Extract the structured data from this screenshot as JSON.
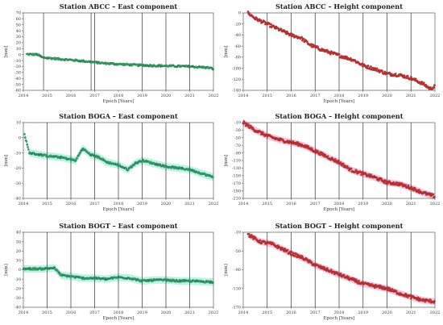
{
  "figure": {
    "xlabel": "Epoch [Years]",
    "ylabel": "[mm]",
    "x_ticks": [
      "2014",
      "2015",
      "2016",
      "2017",
      "2018",
      "2019",
      "2020",
      "2021",
      "2022"
    ]
  },
  "colors": {
    "east_points": "#3aaa6f",
    "east_points_dark": "#2e8a58",
    "height_points": "#c63535",
    "band_green": "#aef0e3",
    "band_pink": "#f6b8d8",
    "break_lines": "#333333"
  },
  "chart_data": [
    {
      "type": "scatter",
      "title": "Station ABCC – East component",
      "component": "east",
      "xlim": [
        2014,
        2022
      ],
      "ylim": [
        -60,
        70
      ],
      "y_ticks": [
        70,
        60,
        50,
        40,
        30,
        20,
        10,
        0,
        -10,
        -20,
        -30,
        -40,
        -50,
        -60
      ],
      "breaks": [
        2014.85,
        2016.85,
        2017.0,
        2019.0,
        2020.0,
        2021.0
      ],
      "uncertainty_band": false,
      "trend": [
        [
          2014.15,
          0.5
        ],
        [
          2014.6,
          0
        ],
        [
          2014.8,
          -5
        ],
        [
          2016.0,
          -9
        ],
        [
          2016.8,
          -12
        ],
        [
          2017.2,
          -14
        ],
        [
          2018.0,
          -16
        ],
        [
          2019.0,
          -18
        ],
        [
          2020.0,
          -19
        ],
        [
          2021.0,
          -20
        ],
        [
          2021.8,
          -22
        ],
        [
          2022.0,
          -24
        ]
      ]
    },
    {
      "type": "scatter",
      "title": "Station ABCC – Height component",
      "component": "height",
      "xlim": [
        2014,
        2022
      ],
      "ylim": [
        -140,
        0
      ],
      "y_ticks": [
        0,
        -20,
        -40,
        -60,
        -80,
        -100,
        -120,
        -140
      ],
      "breaks": [
        2015.0,
        2016.0,
        2017.0,
        2018.0,
        2019.0,
        2020.0,
        2021.0
      ],
      "uncertainty_band": false,
      "trend": [
        [
          2014.2,
          0
        ],
        [
          2014.5,
          -10
        ],
        [
          2015.0,
          -20
        ],
        [
          2015.5,
          -30
        ],
        [
          2016.0,
          -40
        ],
        [
          2016.4,
          -45
        ],
        [
          2016.8,
          -58
        ],
        [
          2017.3,
          -67
        ],
        [
          2018.0,
          -77
        ],
        [
          2018.6,
          -85
        ],
        [
          2019.0,
          -95
        ],
        [
          2019.6,
          -103
        ],
        [
          2020.0,
          -110
        ],
        [
          2020.5,
          -112
        ],
        [
          2021.0,
          -118
        ],
        [
          2021.5,
          -128
        ],
        [
          2021.8,
          -137
        ],
        [
          2022.0,
          -133
        ]
      ]
    },
    {
      "type": "scatter",
      "title": "Station BOGA – East component",
      "component": "east",
      "xlim": [
        2014,
        2022
      ],
      "ylim": [
        -40,
        10
      ],
      "y_ticks": [
        10,
        0,
        -10,
        -20,
        -30,
        -40
      ],
      "breaks": [
        2015.0,
        2016.0,
        2017.0,
        2018.0,
        2019.0,
        2020.0,
        2021.0
      ],
      "uncertainty_band": true,
      "trend": [
        [
          2014.05,
          2
        ],
        [
          2014.25,
          -10
        ],
        [
          2015.0,
          -12
        ],
        [
          2015.6,
          -13
        ],
        [
          2016.2,
          -15
        ],
        [
          2016.5,
          -7
        ],
        [
          2016.8,
          -11
        ],
        [
          2017.2,
          -13
        ],
        [
          2017.5,
          -16
        ],
        [
          2018.0,
          -18
        ],
        [
          2018.4,
          -21
        ],
        [
          2018.7,
          -17
        ],
        [
          2019.0,
          -15
        ],
        [
          2019.5,
          -17
        ],
        [
          2020.0,
          -19
        ],
        [
          2021.0,
          -21
        ],
        [
          2021.8,
          -25
        ],
        [
          2022.0,
          -26
        ]
      ]
    },
    {
      "type": "scatter",
      "title": "Station BOGA – Height component",
      "component": "height",
      "xlim": [
        2014,
        2022
      ],
      "ylim": [
        -210,
        -10
      ],
      "y_ticks": [
        -10,
        -30,
        -50,
        -70,
        -90,
        -110,
        -130,
        -150,
        -170,
        -190,
        -210
      ],
      "breaks": [
        2015.0,
        2016.0,
        2017.0,
        2018.0,
        2019.0,
        2020.0,
        2021.0
      ],
      "uncertainty_band": true,
      "trend": [
        [
          2014.0,
          -10
        ],
        [
          2014.5,
          -30
        ],
        [
          2015.0,
          -45
        ],
        [
          2015.5,
          -55
        ],
        [
          2016.0,
          -62
        ],
        [
          2016.5,
          -70
        ],
        [
          2017.0,
          -85
        ],
        [
          2017.5,
          -100
        ],
        [
          2018.0,
          -115
        ],
        [
          2018.5,
          -135
        ],
        [
          2019.0,
          -145
        ],
        [
          2019.5,
          -155
        ],
        [
          2020.0,
          -168
        ],
        [
          2020.5,
          -172
        ],
        [
          2021.0,
          -182
        ],
        [
          2021.5,
          -195
        ],
        [
          2022.0,
          -205
        ]
      ]
    },
    {
      "type": "scatter",
      "title": "Station BOGT – East component",
      "component": "east",
      "xlim": [
        2014,
        2022
      ],
      "ylim": [
        -40,
        40
      ],
      "y_ticks": [
        40,
        30,
        20,
        10,
        0,
        -10,
        -20,
        -30,
        -40
      ],
      "breaks": [
        2015.0,
        2016.0,
        2017.0,
        2018.0,
        2019.0,
        2020.0,
        2021.0
      ],
      "uncertainty_band": true,
      "trend": [
        [
          2014.0,
          1
        ],
        [
          2014.8,
          1
        ],
        [
          2015.3,
          2
        ],
        [
          2015.6,
          -6
        ],
        [
          2016.0,
          -7
        ],
        [
          2016.5,
          -9
        ],
        [
          2017.0,
          -9
        ],
        [
          2017.5,
          -10
        ],
        [
          2018.0,
          -8
        ],
        [
          2018.5,
          -9
        ],
        [
          2019.0,
          -12
        ],
        [
          2019.5,
          -11
        ],
        [
          2020.0,
          -11
        ],
        [
          2020.5,
          -12
        ],
        [
          2021.0,
          -12
        ],
        [
          2022.0,
          -13
        ]
      ]
    },
    {
      "type": "scatter",
      "title": "Station BOGT – Height component",
      "component": "height",
      "xlim": [
        2014,
        2022
      ],
      "ylim": [
        -170,
        -10
      ],
      "y_ticks": [
        -10,
        -50,
        -90,
        -130,
        -170
      ],
      "breaks": [
        2015.0,
        2016.0,
        2017.0,
        2018.0,
        2019.0,
        2020.0,
        2021.0
      ],
      "uncertainty_band": true,
      "trend": [
        [
          2014.2,
          -15
        ],
        [
          2014.7,
          -30
        ],
        [
          2015.2,
          -35
        ],
        [
          2015.6,
          -45
        ],
        [
          2016.0,
          -55
        ],
        [
          2016.5,
          -65
        ],
        [
          2017.0,
          -80
        ],
        [
          2017.5,
          -90
        ],
        [
          2018.0,
          -100
        ],
        [
          2018.5,
          -110
        ],
        [
          2019.0,
          -120
        ],
        [
          2019.5,
          -125
        ],
        [
          2020.0,
          -130
        ],
        [
          2020.5,
          -140
        ],
        [
          2021.0,
          -148
        ],
        [
          2021.5,
          -155
        ],
        [
          2022.0,
          -158
        ]
      ]
    }
  ]
}
